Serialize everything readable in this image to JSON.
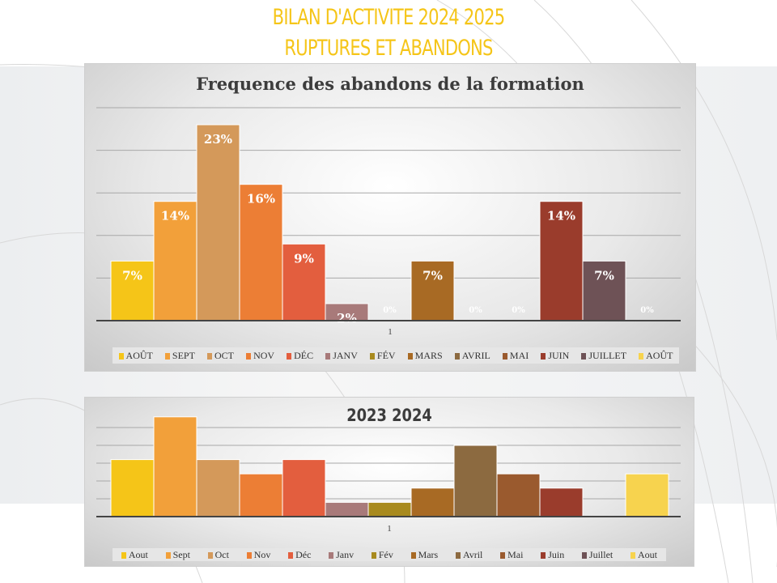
{
  "slide": {
    "title_line1": "BILAN D'ACTIVITE 2024 2025",
    "title_line2": "RUPTURES ET ABANDONS"
  },
  "chart_data": [
    {
      "type": "bar",
      "title": "Frequence des abandons de la formation",
      "category_axis_label": "1",
      "series": [
        {
          "name": "AOÛT",
          "value": 7,
          "label": "7%",
          "color": "#F5C518"
        },
        {
          "name": "SEPT",
          "value": 14,
          "label": "14%",
          "color": "#F2A03A"
        },
        {
          "name": "OCT",
          "value": 23,
          "label": "23%",
          "color": "#D4995A"
        },
        {
          "name": "NOV",
          "value": 16,
          "label": "16%",
          "color": "#EC7E35"
        },
        {
          "name": "DÉC",
          "value": 9,
          "label": "9%",
          "color": "#E35E3E"
        },
        {
          "name": "JANV",
          "value": 2,
          "label": "2%",
          "color": "#A87A7A"
        },
        {
          "name": "FÉV",
          "value": 0,
          "label": "0%",
          "color": "#A88A1E"
        },
        {
          "name": "MARS",
          "value": 7,
          "label": "7%",
          "color": "#A86A24"
        },
        {
          "name": "AVRIL",
          "value": 0,
          "label": "0%",
          "color": "#8C6A40"
        },
        {
          "name": "MAI",
          "value": 0,
          "label": "0%",
          "color": "#9A5A2E"
        },
        {
          "name": "JUIN",
          "value": 14,
          "label": "14%",
          "color": "#9A3C2C"
        },
        {
          "name": "JUILLET",
          "value": 7,
          "label": "7%",
          "color": "#6E5256"
        },
        {
          "name": "AOÛT",
          "value": 0,
          "label": "0%",
          "color": "#F7D34E"
        }
      ],
      "ylim": [
        0,
        25
      ],
      "grid": true,
      "legend": "bottom"
    },
    {
      "type": "bar",
      "title": "2023 2024",
      "category_axis_label": "1",
      "series": [
        {
          "name": "Aout",
          "value": 4,
          "color": "#F5C518"
        },
        {
          "name": "Sept",
          "value": 7,
          "color": "#F2A03A"
        },
        {
          "name": "Oct",
          "value": 4,
          "color": "#D4995A"
        },
        {
          "name": "Nov",
          "value": 3,
          "color": "#EC7E35"
        },
        {
          "name": "Déc",
          "value": 4,
          "color": "#E35E3E"
        },
        {
          "name": "Janv",
          "value": 1,
          "color": "#A87A7A"
        },
        {
          "name": "Fév",
          "value": 1,
          "color": "#A88A1E"
        },
        {
          "name": "Mars",
          "value": 2,
          "color": "#A86A24"
        },
        {
          "name": "Avril",
          "value": 5,
          "color": "#8C6A40"
        },
        {
          "name": "Mai",
          "value": 3,
          "color": "#9A5A2E"
        },
        {
          "name": "Juin",
          "value": 2,
          "color": "#9A3C2C"
        },
        {
          "name": "Juillet",
          "value": 0,
          "color": "#6E5256"
        },
        {
          "name": "Aout",
          "value": 3,
          "color": "#F7D34E"
        }
      ],
      "ylim": [
        0,
        6.25
      ],
      "grid": true,
      "legend": "bottom"
    }
  ]
}
